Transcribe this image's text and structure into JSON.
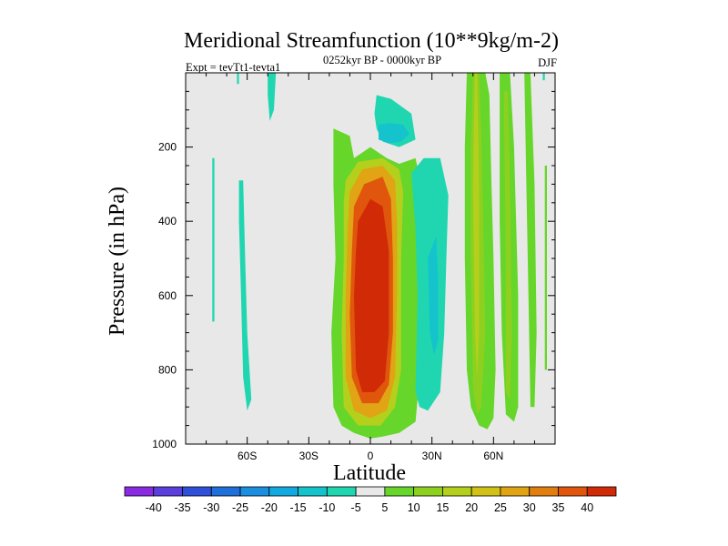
{
  "chart_data": {
    "type": "heatmap",
    "title": "Meridional Streamfunction (10**9kg/m-2)",
    "subtitle": "0252kyr BP - 0000kyr BP",
    "left_label": "Expt = tevTt1-tevta1",
    "right_label": "DJF",
    "xlabel": "Latitude",
    "ylabel": "Pressure (in hPa)",
    "xlim": [
      -90,
      90
    ],
    "ylim": [
      1000,
      0
    ],
    "x_ticks": [
      {
        "value": -60,
        "label": "60S"
      },
      {
        "value": -30,
        "label": "30S"
      },
      {
        "value": 0,
        "label": "0"
      },
      {
        "value": 30,
        "label": "30N"
      },
      {
        "value": 60,
        "label": "60N"
      }
    ],
    "y_ticks": [
      {
        "value": 200,
        "label": "200"
      },
      {
        "value": 400,
        "label": "400"
      },
      {
        "value": 600,
        "label": "600"
      },
      {
        "value": 800,
        "label": "800"
      },
      {
        "value": 1000,
        "label": "1000"
      }
    ],
    "colorbar": {
      "labels": [
        "-40",
        "-35",
        "-30",
        "-25",
        "-20",
        "-15",
        "-10",
        "-5",
        "5",
        "10",
        "15",
        "20",
        "25",
        "30",
        "35",
        "40"
      ],
      "colors": [
        "#8a2be2",
        "#5a3fdc",
        "#2f4fd8",
        "#1f6fd8",
        "#1b8ee0",
        "#12a8e0",
        "#14c3cc",
        "#1fd6b0",
        "#e8e8e8",
        "#66d62a",
        "#8ed020",
        "#b4d01c",
        "#d2c218",
        "#e0a414",
        "#e07e10",
        "#e0560c",
        "#d02a06"
      ]
    },
    "regions": [
      {
        "name": "max-south-strip-a",
        "fill": "#1fd6b0",
        "pts": [
          [
            -77,
            230
          ],
          [
            -76,
            230
          ],
          [
            -76,
            670
          ],
          [
            -77,
            670
          ]
        ]
      },
      {
        "name": "max-south-strip-b",
        "fill": "#1fd6b0",
        "pts": [
          [
            -64,
            290
          ],
          [
            -62,
            290
          ],
          [
            -61,
            500
          ],
          [
            -60,
            700
          ],
          [
            -58,
            880
          ],
          [
            -60,
            910
          ],
          [
            -62,
            820
          ],
          [
            -63,
            600
          ],
          [
            -64,
            400
          ]
        ]
      },
      {
        "name": "max-south-top",
        "fill": "#1fd6b0",
        "pts": [
          [
            -65,
            0
          ],
          [
            -64,
            0
          ],
          [
            -64,
            30
          ],
          [
            -65,
            30
          ]
        ]
      },
      {
        "name": "max-south-top-b",
        "fill": "#1fd6b0",
        "pts": [
          [
            -50,
            0
          ],
          [
            -46,
            0
          ],
          [
            -47,
            100
          ],
          [
            -49,
            130
          ],
          [
            -50,
            60
          ]
        ]
      },
      {
        "name": "min-core-blob",
        "fill": "#1fd6b0",
        "pts": [
          [
            3,
            60
          ],
          [
            10,
            70
          ],
          [
            20,
            110
          ],
          [
            22,
            180
          ],
          [
            14,
            200
          ],
          [
            6,
            185
          ],
          [
            3,
            150
          ],
          [
            2,
            110
          ]
        ]
      },
      {
        "name": "min-core-blob-2",
        "fill": "#14c3cc",
        "pts": [
          [
            4,
            140
          ],
          [
            9,
            135
          ],
          [
            16,
            140
          ],
          [
            19,
            165
          ],
          [
            15,
            185
          ],
          [
            9,
            190
          ],
          [
            4,
            180
          ]
        ]
      },
      {
        "name": "pos-bound",
        "fill": "#66d62a",
        "pts": [
          [
            -18,
            150
          ],
          [
            -10,
            170
          ],
          [
            -8,
            230
          ],
          [
            0,
            200
          ],
          [
            8,
            230
          ],
          [
            14,
            245
          ],
          [
            22,
            230
          ],
          [
            24,
            280
          ],
          [
            22,
            400
          ],
          [
            24,
            600
          ],
          [
            24,
            820
          ],
          [
            22,
            940
          ],
          [
            14,
            970
          ],
          [
            6,
            980
          ],
          [
            0,
            985
          ],
          [
            -8,
            970
          ],
          [
            -14,
            950
          ],
          [
            -18,
            900
          ],
          [
            -19,
            700
          ],
          [
            -17,
            500
          ],
          [
            -18,
            300
          ],
          [
            -18,
            200
          ]
        ]
      },
      {
        "name": "pos-a",
        "fill": "#b4d01c",
        "pts": [
          [
            -12,
            290
          ],
          [
            -6,
            240
          ],
          [
            6,
            230
          ],
          [
            14,
            260
          ],
          [
            16,
            320
          ],
          [
            15,
            500
          ],
          [
            15,
            800
          ],
          [
            12,
            900
          ],
          [
            5,
            950
          ],
          [
            -6,
            950
          ],
          [
            -13,
            900
          ],
          [
            -14,
            700
          ],
          [
            -13,
            500
          ],
          [
            -13,
            350
          ]
        ]
      },
      {
        "name": "pos-b",
        "fill": "#e0a414",
        "pts": [
          [
            -10,
            320
          ],
          [
            -4,
            260
          ],
          [
            6,
            250
          ],
          [
            12,
            290
          ],
          [
            13,
            400
          ],
          [
            13,
            600
          ],
          [
            12,
            820
          ],
          [
            8,
            910
          ],
          [
            0,
            930
          ],
          [
            -8,
            910
          ],
          [
            -12,
            820
          ],
          [
            -12,
            600
          ],
          [
            -11,
            420
          ]
        ]
      },
      {
        "name": "pos-c",
        "fill": "#e0560c",
        "pts": [
          [
            -8,
            360
          ],
          [
            -3,
            300
          ],
          [
            6,
            280
          ],
          [
            10,
            340
          ],
          [
            11,
            500
          ],
          [
            11,
            700
          ],
          [
            9,
            840
          ],
          [
            4,
            890
          ],
          [
            -4,
            890
          ],
          [
            -9,
            820
          ],
          [
            -10,
            650
          ],
          [
            -9,
            480
          ]
        ]
      },
      {
        "name": "pos-core",
        "fill": "#d02a06",
        "pts": [
          [
            -6,
            400
          ],
          [
            0,
            340
          ],
          [
            6,
            360
          ],
          [
            9,
            480
          ],
          [
            9,
            700
          ],
          [
            7,
            830
          ],
          [
            2,
            860
          ],
          [
            -4,
            860
          ],
          [
            -7,
            800
          ],
          [
            -8,
            600
          ],
          [
            -7,
            480
          ]
        ]
      },
      {
        "name": "min-right-strip",
        "fill": "#1fd6b0",
        "pts": [
          [
            20,
            270
          ],
          [
            26,
            230
          ],
          [
            34,
            230
          ],
          [
            38,
            330
          ],
          [
            37,
            500
          ],
          [
            36,
            700
          ],
          [
            34,
            860
          ],
          [
            28,
            910
          ],
          [
            24,
            900
          ],
          [
            22,
            860
          ],
          [
            23,
            600
          ],
          [
            22,
            420
          ]
        ]
      },
      {
        "name": "min-right-inner",
        "fill": "#14c3cc",
        "pts": [
          [
            28,
            500
          ],
          [
            32,
            440
          ],
          [
            33,
            560
          ],
          [
            33,
            720
          ],
          [
            31,
            760
          ],
          [
            29,
            700
          ]
        ]
      },
      {
        "name": "pos-north-band",
        "fill": "#66d62a",
        "pts": [
          [
            47,
            0
          ],
          [
            56,
            0
          ],
          [
            58,
            60
          ],
          [
            59,
            300
          ],
          [
            60,
            500
          ],
          [
            61,
            800
          ],
          [
            60,
            930
          ],
          [
            57,
            960
          ],
          [
            53,
            950
          ],
          [
            49,
            900
          ],
          [
            47,
            800
          ],
          [
            46,
            500
          ],
          [
            46,
            200
          ]
        ]
      },
      {
        "name": "pos-north-inner",
        "fill": "#8ed020",
        "pts": [
          [
            50,
            0
          ],
          [
            53,
            0
          ],
          [
            54,
            150
          ],
          [
            55,
            400
          ],
          [
            56,
            700
          ],
          [
            54,
            900
          ],
          [
            52,
            920
          ],
          [
            50,
            850
          ],
          [
            49,
            500
          ],
          [
            49,
            200
          ]
        ]
      },
      {
        "name": "pos-north-inner-b",
        "fill": "#b4d01c",
        "pts": [
          [
            51,
            0
          ],
          [
            52,
            0
          ],
          [
            53,
            300
          ],
          [
            53,
            700
          ],
          [
            52,
            820
          ],
          [
            51,
            700
          ],
          [
            50,
            300
          ]
        ]
      },
      {
        "name": "pos-north-band2",
        "fill": "#66d62a",
        "pts": [
          [
            63,
            0
          ],
          [
            68,
            0
          ],
          [
            70,
            200
          ],
          [
            72,
            600
          ],
          [
            72,
            900
          ],
          [
            70,
            940
          ],
          [
            66,
            920
          ],
          [
            64,
            700
          ],
          [
            63,
            400
          ]
        ]
      },
      {
        "name": "pos-north-band2-in",
        "fill": "#8ed020",
        "pts": [
          [
            65,
            50
          ],
          [
            67,
            50
          ],
          [
            68,
            300
          ],
          [
            69,
            700
          ],
          [
            68,
            880
          ],
          [
            66,
            860
          ],
          [
            66,
            500
          ]
        ]
      },
      {
        "name": "pos-north-band3",
        "fill": "#66d62a",
        "pts": [
          [
            75,
            0
          ],
          [
            78,
            0
          ],
          [
            80,
            300
          ],
          [
            81,
            700
          ],
          [
            80,
            900
          ],
          [
            78,
            900
          ],
          [
            77,
            600
          ],
          [
            76,
            300
          ]
        ]
      },
      {
        "name": "pos-north-sliver",
        "fill": "#66d62a",
        "pts": [
          [
            85,
            250
          ],
          [
            86,
            250
          ],
          [
            86,
            800
          ],
          [
            85,
            800
          ]
        ]
      },
      {
        "name": "pos-north-tip",
        "fill": "#1fd6b0",
        "pts": [
          [
            84,
            0
          ],
          [
            85,
            0
          ],
          [
            85,
            20
          ],
          [
            84,
            20
          ]
        ]
      }
    ]
  }
}
